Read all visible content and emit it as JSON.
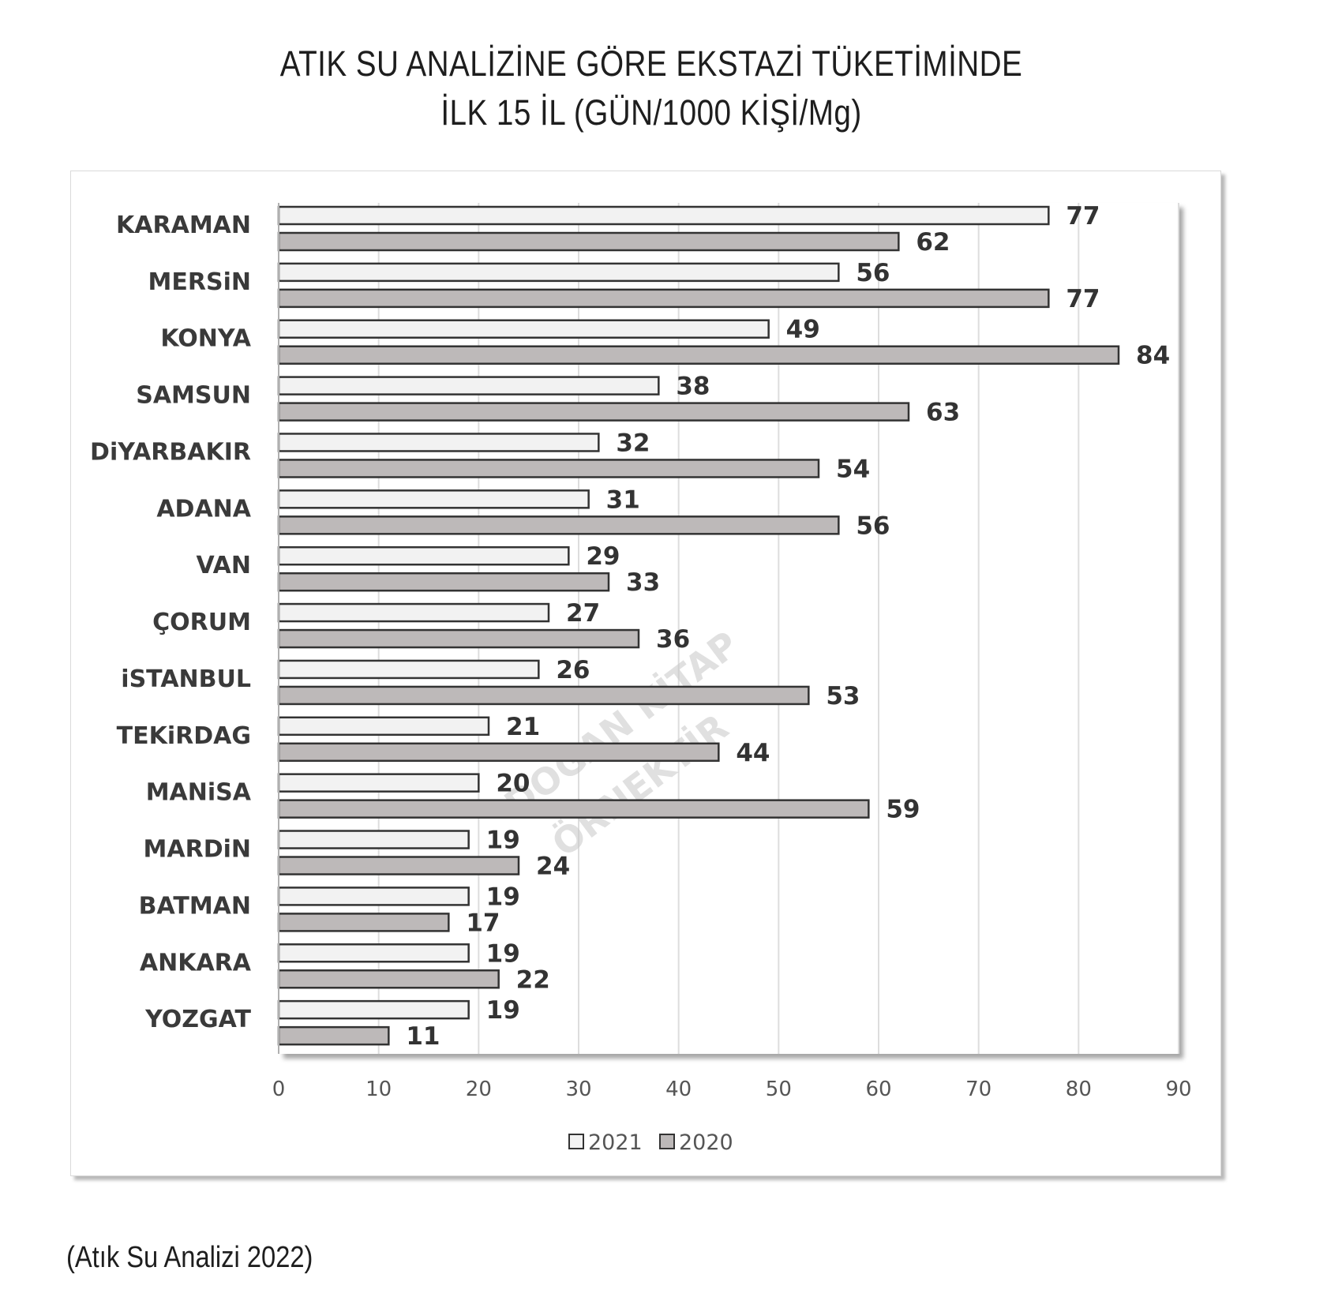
{
  "title": {
    "line1": "ATIK SU ANALİZİNE GÖRE EKSTAZİ TÜKETİMİNDE",
    "line2": "İLK 15 İL (GÜN/1000 KİŞİ/Mg)"
  },
  "source": "(Atık Su Analizi 2022)",
  "watermark": {
    "line1": "DOĞAN KİTAP",
    "line2": "ÖRNEKTİR"
  },
  "chart_data": {
    "type": "bar",
    "orientation": "horizontal",
    "title": "ATIK SU ANALİZİNE GÖRE EKSTAZİ TÜKETİMİNDE İLK 15 İL (GÜN/1000 KİŞİ/Mg)",
    "categories": [
      "KARAMAN",
      "MERSiN",
      "KONYA",
      "SAMSUN",
      "DiYARBAKIR",
      "ADANA",
      "VAN",
      "ÇORUM",
      "iSTANBUL",
      "TEKiRDAG",
      "MANiSA",
      "MARDiN",
      "BATMAN",
      "ANKARA",
      "YOZGAT"
    ],
    "series": [
      {
        "name": "2021",
        "color": "#f2f2f2",
        "values": [
          77,
          56,
          49,
          38,
          32,
          31,
          29,
          27,
          26,
          21,
          20,
          19,
          19,
          19,
          19
        ]
      },
      {
        "name": "2020",
        "color": "#bdb9b9",
        "values": [
          62,
          77,
          84,
          63,
          54,
          56,
          33,
          36,
          53,
          44,
          59,
          24,
          17,
          22,
          11
        ]
      }
    ],
    "xlim": [
      0,
      90
    ],
    "xticks": [
      "0",
      "10",
      "20",
      "30",
      "40",
      "50",
      "60",
      "70",
      "80",
      "90"
    ],
    "xlabel": "",
    "ylabel": "",
    "grid": "vertical",
    "legend": "bottom-center",
    "bar_outline": "#333333",
    "grid_color": "#dddddd"
  }
}
